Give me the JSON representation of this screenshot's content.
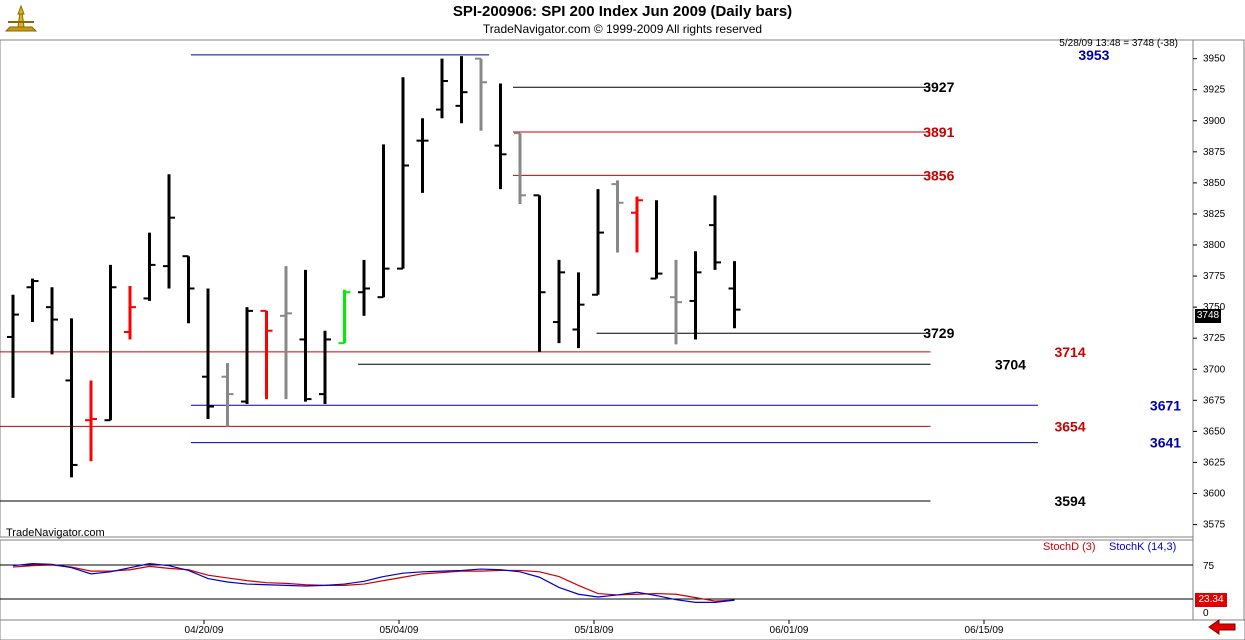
{
  "header": {
    "title": "SPI-200906:  SPI 200 Index Jun 2009  (Daily bars)",
    "subtitle": "TradeNavigator.com © 1999-2009 All rights reserved",
    "quote": "5/28/09 13:48 = 3748 (-38)"
  },
  "watermark": "TradeNavigator.com",
  "indicator": {
    "stoch_d_label": "StochD (3)",
    "stoch_k_label": "StochK (14,3)",
    "current_value": "23.34",
    "y_ticks": [
      "75",
      "0"
    ]
  },
  "last_price_label": "3748",
  "colors": {
    "up_bar": "#00ee00",
    "down_bar": "#ff0000",
    "neutral_up": "#000000",
    "neutral_down": "#888888",
    "stoch_d": "#cc0000",
    "stoch_k": "#0000cc",
    "level_blue": "#0000aa",
    "level_red": "#cc0000",
    "level_black": "#000000"
  },
  "chart_data": {
    "type": "ohlc",
    "y_range": [
      3565,
      3965
    ],
    "y_ticks": [
      3575,
      3600,
      3625,
      3650,
      3675,
      3700,
      3725,
      3750,
      3775,
      3800,
      3825,
      3850,
      3875,
      3900,
      3925,
      3950
    ],
    "x_tick_labels": [
      {
        "label": "04/20/09",
        "bar_index": 10
      },
      {
        "label": "05/04/09",
        "bar_index": 20
      },
      {
        "label": "05/18/09",
        "bar_index": 30
      },
      {
        "label": "06/01/09",
        "bar_index": 40
      },
      {
        "label": "06/15/09",
        "bar_index": 50
      }
    ],
    "bars": [
      {
        "o": 3726,
        "h": 3760,
        "l": 3677,
        "c": 3744,
        "color": "black"
      },
      {
        "o": 3766,
        "h": 3773,
        "l": 3738,
        "c": 3771,
        "color": "black"
      },
      {
        "o": 3750,
        "h": 3766,
        "l": 3712,
        "c": 3740,
        "color": "black"
      },
      {
        "o": 3691,
        "h": 3741,
        "l": 3613,
        "c": 3623,
        "color": "black"
      },
      {
        "o": 3659,
        "h": 3691,
        "l": 3626,
        "c": 3660,
        "color": "red"
      },
      {
        "o": 3659,
        "h": 3784,
        "l": 3659,
        "c": 3766,
        "color": "black"
      },
      {
        "o": 3730,
        "h": 3767,
        "l": 3724,
        "c": 3750,
        "color": "red"
      },
      {
        "o": 3757,
        "h": 3810,
        "l": 3755,
        "c": 3784,
        "color": "black"
      },
      {
        "o": 3783,
        "h": 3857,
        "l": 3765,
        "c": 3822,
        "color": "black"
      },
      {
        "o": 3791,
        "h": 3791,
        "l": 3737,
        "c": 3765,
        "color": "black"
      },
      {
        "o": 3694,
        "h": 3765,
        "l": 3660,
        "c": 3670,
        "color": "black"
      },
      {
        "o": 3694,
        "h": 3705,
        "l": 3654,
        "c": 3680,
        "color": "gray"
      },
      {
        "o": 3674,
        "h": 3750,
        "l": 3672,
        "c": 3747,
        "color": "black"
      },
      {
        "o": 3747,
        "h": 3747,
        "l": 3676,
        "c": 3731,
        "color": "red"
      },
      {
        "o": 3743,
        "h": 3783,
        "l": 3676,
        "c": 3745,
        "color": "gray"
      },
      {
        "o": 3724,
        "h": 3780,
        "l": 3674,
        "c": 3676,
        "color": "black"
      },
      {
        "o": 3680,
        "h": 3731,
        "l": 3672,
        "c": 3724,
        "color": "black"
      },
      {
        "o": 3721,
        "h": 3764,
        "l": 3721,
        "c": 3762,
        "color": "green"
      },
      {
        "o": 3762,
        "h": 3788,
        "l": 3743,
        "c": 3765,
        "color": "black"
      },
      {
        "o": 3758,
        "h": 3881,
        "l": 3758,
        "c": 3781,
        "color": "black"
      },
      {
        "o": 3781,
        "h": 3935,
        "l": 3781,
        "c": 3864,
        "color": "black"
      },
      {
        "o": 3884,
        "h": 3902,
        "l": 3842,
        "c": 3884,
        "color": "black"
      },
      {
        "o": 3909,
        "h": 3950,
        "l": 3902,
        "c": 3932,
        "color": "black"
      },
      {
        "o": 3912,
        "h": 3952,
        "l": 3898,
        "c": 3923,
        "color": "black"
      },
      {
        "o": 3950,
        "h": 3950,
        "l": 3892,
        "c": 3931,
        "color": "gray"
      },
      {
        "o": 3880,
        "h": 3930,
        "l": 3845,
        "c": 3873,
        "color": "black"
      },
      {
        "o": 3890,
        "h": 3890,
        "l": 3833,
        "c": 3840,
        "color": "gray"
      },
      {
        "o": 3840,
        "h": 3840,
        "l": 3714,
        "c": 3762,
        "color": "black"
      },
      {
        "o": 3738,
        "h": 3788,
        "l": 3721,
        "c": 3778,
        "color": "black"
      },
      {
        "o": 3732,
        "h": 3778,
        "l": 3717,
        "c": 3752,
        "color": "black"
      },
      {
        "o": 3760,
        "h": 3845,
        "l": 3760,
        "c": 3810,
        "color": "black"
      },
      {
        "o": 3849,
        "h": 3852,
        "l": 3794,
        "c": 3834,
        "color": "gray"
      },
      {
        "o": 3826,
        "h": 3839,
        "l": 3794,
        "c": 3836,
        "color": "red"
      },
      {
        "o": 3773,
        "h": 3836,
        "l": 3773,
        "c": 3777,
        "color": "black"
      },
      {
        "o": 3758,
        "h": 3788,
        "l": 3720,
        "c": 3754,
        "color": "gray"
      },
      {
        "o": 3755,
        "h": 3795,
        "l": 3724,
        "c": 3778,
        "color": "black"
      },
      {
        "o": 3816,
        "h": 3840,
        "l": 3780,
        "c": 3786,
        "color": "black"
      },
      {
        "o": 3765,
        "h": 3787,
        "l": 3733,
        "c": 3748,
        "color": "black"
      }
    ],
    "levels": [
      {
        "value": 3953,
        "label": "3953",
        "color": "blue",
        "x_from": 0.16,
        "x_to": 0.41,
        "label_x": 0.93
      },
      {
        "value": 3927,
        "label": "3927",
        "color": "black",
        "x_from": 0.43,
        "x_to": 0.78,
        "label_x": 0.8
      },
      {
        "value": 3891,
        "label": "3891",
        "color": "red",
        "x_from": 0.43,
        "x_to": 0.78,
        "label_x": 0.8
      },
      {
        "value": 3856,
        "label": "3856",
        "color": "red",
        "x_from": 0.43,
        "x_to": 0.78,
        "label_x": 0.8
      },
      {
        "value": 3729,
        "label": "3729",
        "color": "black",
        "x_from": 0.5,
        "x_to": 0.78,
        "label_x": 0.8
      },
      {
        "value": 3714,
        "label": "3714",
        "color": "red",
        "x_from": 0.0,
        "x_to": 0.78,
        "label_x": 0.91
      },
      {
        "value": 3704,
        "label": "3704",
        "color": "black",
        "x_from": 0.3,
        "x_to": 0.78,
        "label_x": 0.86
      },
      {
        "value": 3671,
        "label": "3671",
        "color": "blue",
        "x_from": 0.16,
        "x_to": 0.87,
        "label_x": 0.99
      },
      {
        "value": 3654,
        "label": "3654",
        "color": "red",
        "x_from": 0.0,
        "x_to": 0.78,
        "label_x": 0.91
      },
      {
        "value": 3641,
        "label": "3641",
        "color": "blue",
        "x_from": 0.16,
        "x_to": 0.87,
        "label_x": 0.99
      },
      {
        "value": 3594,
        "label": "3594",
        "color": "black",
        "x_from": 0.0,
        "x_to": 0.78,
        "label_x": 0.91
      }
    ],
    "stoch_d": [
      72,
      74,
      75,
      72,
      66,
      66,
      68,
      73,
      70,
      68,
      60,
      56,
      52,
      49,
      48,
      46,
      45,
      45,
      47,
      52,
      57,
      62,
      64,
      66,
      66,
      67,
      67,
      65,
      58,
      45,
      33,
      31,
      32,
      33,
      32,
      27,
      22,
      23.3
    ],
    "stoch_k": [
      74,
      77,
      76,
      71,
      62,
      65,
      71,
      77,
      74,
      67,
      55,
      50,
      47,
      46,
      45,
      44,
      45,
      47,
      51,
      58,
      63,
      65,
      66,
      67,
      69,
      68,
      65,
      57,
      42,
      32,
      28,
      31,
      35,
      30,
      24,
      20,
      20,
      23.3
    ],
    "stoch_range": [
      0,
      100
    ]
  }
}
